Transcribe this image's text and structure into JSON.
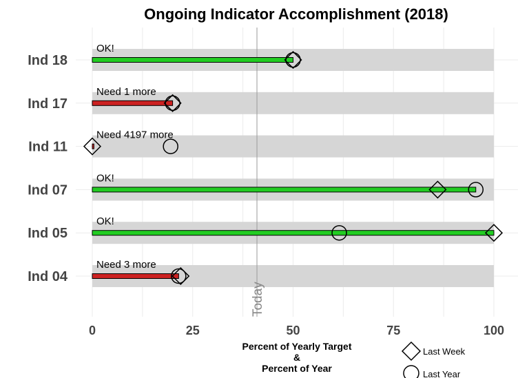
{
  "chart_data": {
    "type": "bar",
    "title": "Ongoing Indicator Accomplishment (2018)",
    "xlabel_lines": [
      "Percent of Yearly Target",
      "&",
      "Percent of Year"
    ],
    "xlim": [
      0,
      100
    ],
    "xticks": [
      0,
      25,
      50,
      75,
      100
    ],
    "grid": true,
    "today": {
      "label": "Today",
      "value": 41
    },
    "categories": [
      "Ind 18",
      "Ind 17",
      "Ind 11",
      "Ind 07",
      "Ind 05",
      "Ind 04"
    ],
    "series": [
      {
        "name": "Percent of Yearly Target",
        "values": [
          50,
          20,
          0.4,
          95.5,
          100,
          21.5
        ]
      },
      {
        "name": "Last Week",
        "values": [
          50,
          20,
          0,
          86,
          100,
          22
        ]
      },
      {
        "name": "Last Year",
        "values": [
          50,
          20,
          19.5,
          95.5,
          61.5,
          21.5
        ]
      }
    ],
    "status": [
      "OK!",
      "Need 1 more",
      "Need 4197 more",
      "OK!",
      "OK!",
      "Need 3 more"
    ],
    "status_ok": [
      true,
      false,
      false,
      true,
      true,
      false
    ],
    "legend": {
      "placement": "bottom-right",
      "entries": [
        {
          "label": "Last Week",
          "shape": "diamond"
        },
        {
          "label": "Last Year",
          "shape": "circle"
        }
      ]
    },
    "colors": {
      "ok_bar": "#22cc22",
      "behind_bar": "#cc2222",
      "band": "#d6d6d6",
      "grid": "#ebebeb",
      "today_line": "#999999",
      "text": "#444444"
    }
  }
}
